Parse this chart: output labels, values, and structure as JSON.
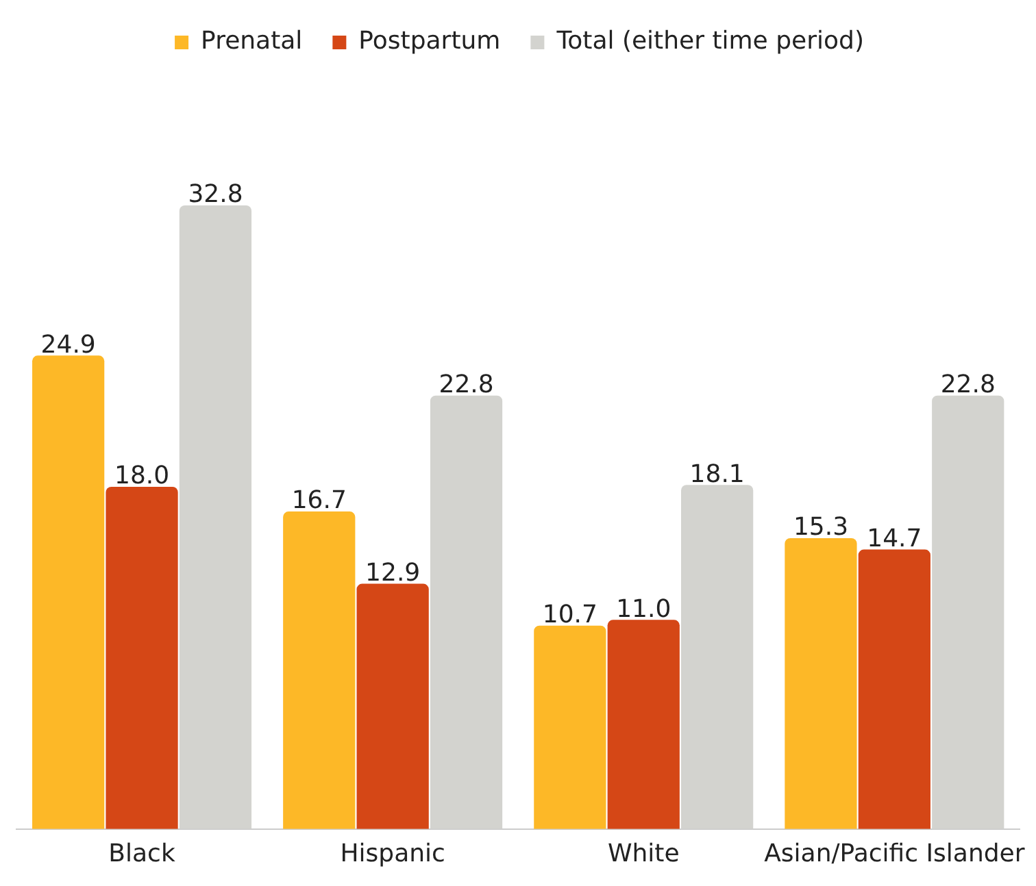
{
  "chart_data": {
    "type": "bar",
    "categories": [
      "Black",
      "Hispanic",
      "White",
      "Asian/Pacific Islander"
    ],
    "series": [
      {
        "name": "Prenatal",
        "color": "#fdb827",
        "values": [
          24.9,
          16.7,
          10.7,
          15.3
        ],
        "value_labels": [
          "24.9",
          "16.7",
          "10.7",
          "15.3"
        ]
      },
      {
        "name": "Postpartum",
        "color": "#d54716",
        "values": [
          18.0,
          12.9,
          11.0,
          14.7
        ],
        "value_labels": [
          "18.0",
          "12.9",
          "11.0",
          "14.7"
        ]
      },
      {
        "name": "Total (either time period)",
        "color": "#d3d3cf",
        "values": [
          32.8,
          22.8,
          18.1,
          22.8
        ],
        "value_labels": [
          "32.8",
          "22.8",
          "18.1",
          "22.8"
        ]
      }
    ],
    "legend": "top",
    "grid": false,
    "relative": false
  }
}
